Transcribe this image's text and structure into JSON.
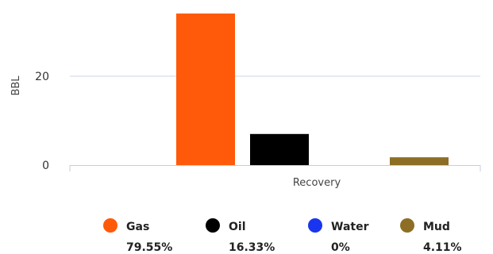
{
  "chart_data": {
    "type": "bar",
    "title": "",
    "xlabel": "",
    "ylabel": "BBL",
    "categories": [
      "Recovery"
    ],
    "series": [
      {
        "name": "Gas",
        "values": [
          34.1
        ],
        "color": "#ff5a0a",
        "percent": "79.55%"
      },
      {
        "name": "Oil",
        "values": [
          7.0
        ],
        "color": "#000000",
        "percent": "16.33%"
      },
      {
        "name": "Water",
        "values": [
          0
        ],
        "color": "#1a35f0",
        "percent": "0%"
      },
      {
        "name": "Mud",
        "values": [
          1.76
        ],
        "color": "#8d6e24",
        "percent": "4.11%"
      }
    ],
    "yticks": [
      0,
      20
    ],
    "ylim": [
      0,
      36
    ],
    "grid": true,
    "legend_position": "bottom",
    "gridline_color": "#cfd6e6",
    "axis_color": "#c5cede"
  }
}
